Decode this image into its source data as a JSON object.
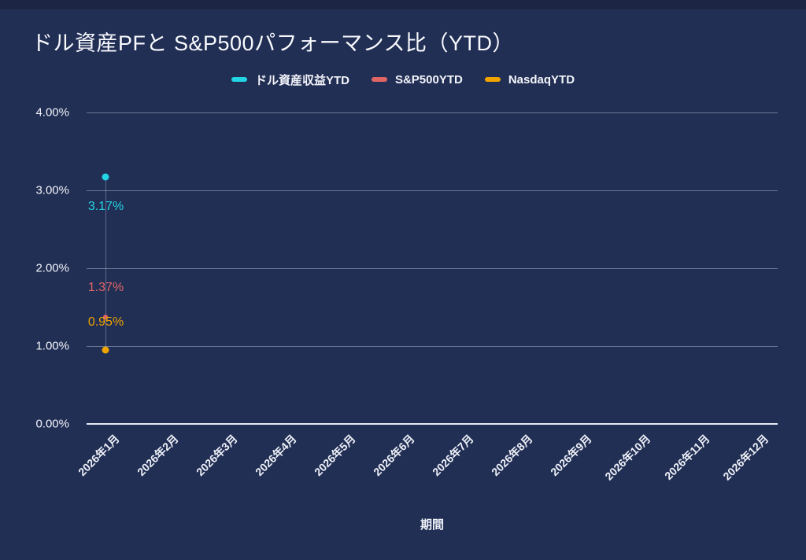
{
  "page": {
    "background_color": "#222f55",
    "top_strip_color": "#1c2644"
  },
  "header": {
    "title": "ドル資産PFと S&P500パフォーマンス比（YTD）"
  },
  "chart_data": {
    "type": "line",
    "title": "ドル資産PFと S&P500パフォーマンス比（YTD）",
    "xlabel": "期間",
    "ylabel": "",
    "ylim": [
      0,
      4
    ],
    "grid": "horizontal",
    "legend_position": "top-center",
    "y_ticks": [
      {
        "value": 0,
        "label": "0.00%"
      },
      {
        "value": 1,
        "label": "1.00%"
      },
      {
        "value": 2,
        "label": "2.00%"
      },
      {
        "value": 3,
        "label": "3.00%"
      },
      {
        "value": 4,
        "label": "4.00%"
      }
    ],
    "categories": [
      "2026年1月",
      "2026年2月",
      "2026年3月",
      "2026年4月",
      "2026年5月",
      "2026年6月",
      "2026年7月",
      "2026年8月",
      "2026年9月",
      "2026年10月",
      "2026年11月",
      "2026年12月"
    ],
    "series": [
      {
        "name": "ドル資産収益YTD",
        "color": "#22d4e4",
        "values": [
          3.17,
          null,
          null,
          null,
          null,
          null,
          null,
          null,
          null,
          null,
          null,
          null
        ],
        "point_labels": {
          "0": "3.17%"
        }
      },
      {
        "name": "S&P500YTD",
        "color": "#e06666",
        "values": [
          1.37,
          null,
          null,
          null,
          null,
          null,
          null,
          null,
          null,
          null,
          null,
          null
        ],
        "point_labels": {
          "0": "1.37%"
        }
      },
      {
        "name": "NasdaqYTD",
        "color": "#f0a400",
        "values": [
          0.95,
          null,
          null,
          null,
          null,
          null,
          null,
          null,
          null,
          null,
          null,
          null
        ],
        "point_labels": {
          "0": "0.95%"
        }
      }
    ]
  }
}
